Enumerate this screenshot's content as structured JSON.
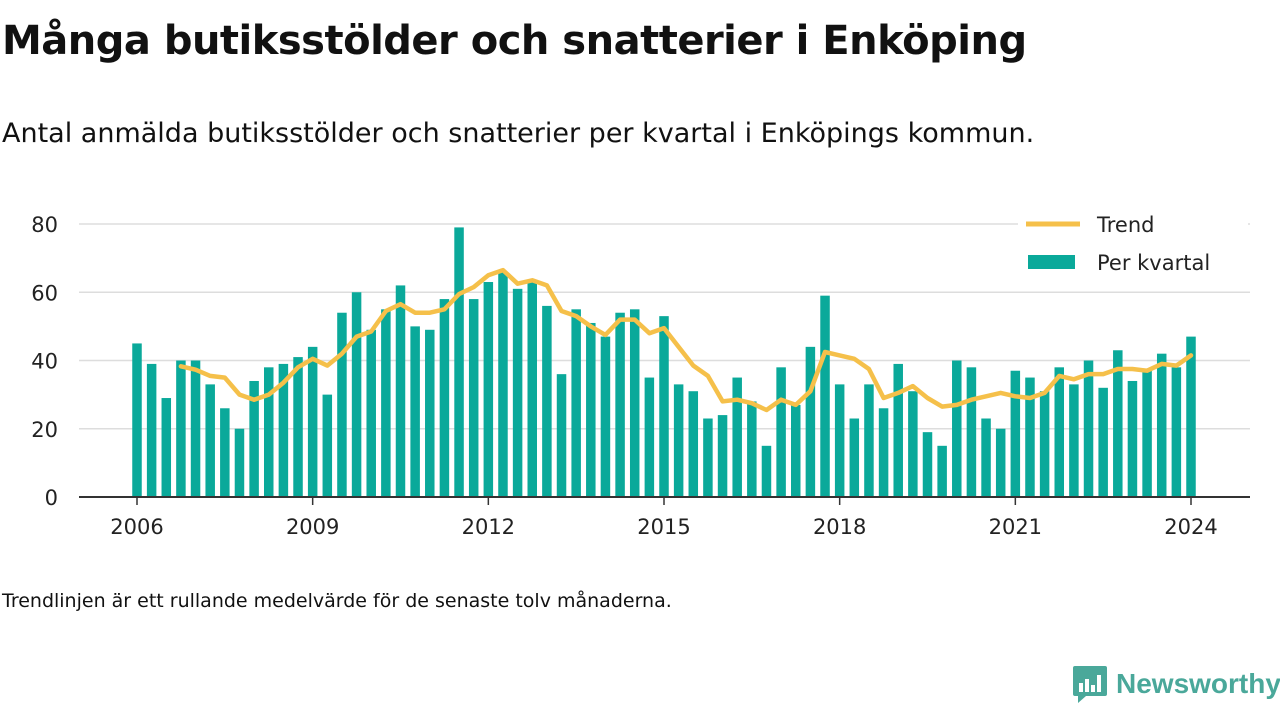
{
  "header": {
    "title": "Många butiksstölder och snatterier i Enköping",
    "subtitle": "Antal anmälda butiksstölder och snatterier per kvartal i Enköpings kommun."
  },
  "footnote": "Trendlinjen är ett rullande medelvärde för de senaste tolv månaderna.",
  "brand": {
    "name": "Newsworthy",
    "color": "#4aa89a",
    "icon": "bar-chart-speech-bubble-icon"
  },
  "colors": {
    "bars": "#0aa99a",
    "trend": "#f5c04a",
    "grid": "#dddddd",
    "axis": "#333333"
  },
  "chart_data": {
    "type": "bar",
    "title": "Många butiksstölder och snatterier i Enköping",
    "xlabel": "",
    "ylabel": "",
    "ylim": [
      0,
      80
    ],
    "xlim": [
      2005.85,
      2024.15
    ],
    "y_ticks": [
      0,
      20,
      40,
      60,
      80
    ],
    "x_ticks": [
      2006,
      2009,
      2012,
      2015,
      2018,
      2021,
      2024
    ],
    "grid": "horizontal",
    "legend_position": "top-right",
    "start": "2006 Q1",
    "series": [
      {
        "name": "Per kvartal",
        "kind": "bar",
        "values": [
          45,
          39,
          29,
          40,
          40,
          33,
          26,
          20,
          34,
          38,
          39,
          41,
          44,
          30,
          54,
          60,
          49,
          55,
          62,
          50,
          49,
          58,
          79,
          58,
          63,
          66,
          61,
          63,
          56,
          36,
          55,
          51,
          47,
          54,
          55,
          35,
          53,
          33,
          31,
          23,
          24,
          35,
          28,
          15,
          38,
          27,
          44,
          59,
          33,
          23,
          33,
          26,
          39,
          31,
          19,
          15,
          40,
          38,
          23,
          20,
          37,
          35,
          31,
          38,
          33,
          40,
          32,
          43,
          34,
          37,
          42,
          38,
          47
        ]
      },
      {
        "name": "Trend",
        "kind": "line",
        "start_index": 3,
        "values": [
          38.3,
          37.3,
          35.5,
          35,
          30,
          28.5,
          30,
          33.5,
          38,
          40.5,
          38.5,
          42,
          47,
          48.5,
          54.5,
          56.5,
          54,
          54,
          55,
          59.5,
          61.5,
          65,
          66.5,
          62.5,
          63.5,
          62,
          54.5,
          53,
          50,
          47.5,
          52,
          52,
          48,
          49.5,
          44,
          38.5,
          35.5,
          28,
          28.5,
          27.5,
          25.5,
          28.5,
          27,
          31,
          42.5,
          41.5,
          40.5,
          37.5,
          29,
          30.5,
          32.5,
          29,
          26.5,
          27,
          28.5,
          29.5,
          30.5,
          29.5,
          29,
          30.5,
          35.5,
          34.5,
          36,
          36,
          37.5,
          37.5,
          37,
          39,
          38.5,
          41.5
        ]
      }
    ]
  }
}
